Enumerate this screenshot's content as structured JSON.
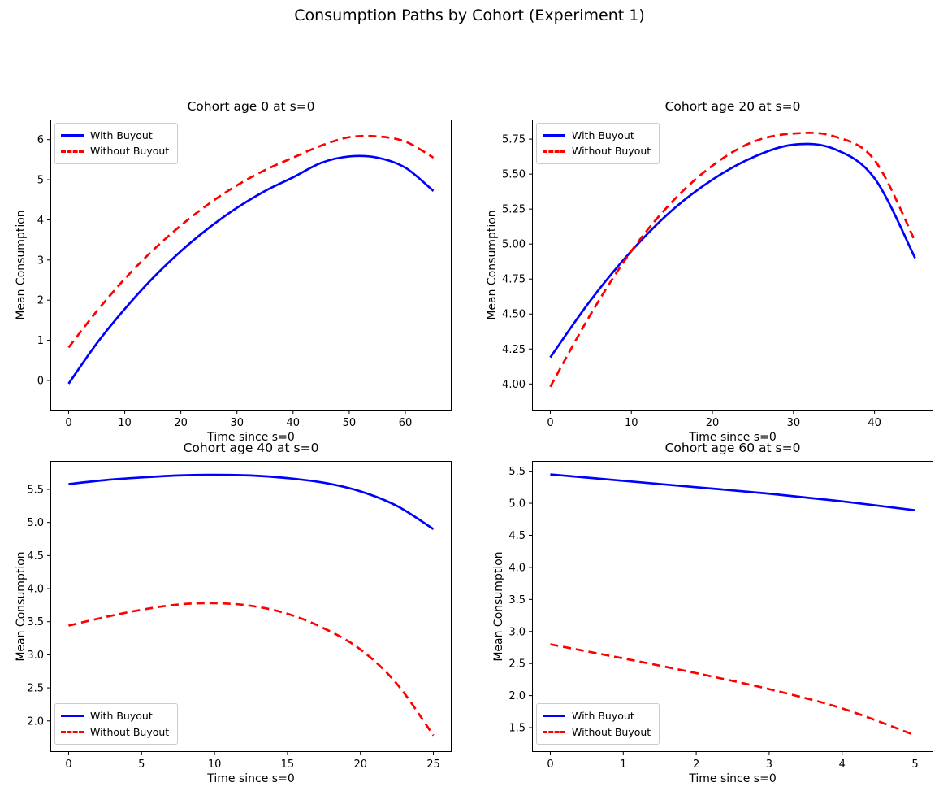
{
  "figure": {
    "title": "Consumption Paths by Cohort (Experiment 1)",
    "background_color": "#ffffff"
  },
  "legend": {
    "with_buyout": "With Buyout",
    "without_buyout": "Without Buyout",
    "with_buyout_color": "#0000ff",
    "without_buyout_color": "#ff0000"
  },
  "chart_data": [
    {
      "type": "line",
      "title": "Cohort age 0 at s=0",
      "xlabel": "Time since s=0",
      "ylabel": "Mean Consumption",
      "xlim": [
        -3.25,
        68.25
      ],
      "ylim": [
        -0.75,
        6.5
      ],
      "xticks": [
        0,
        10,
        20,
        30,
        40,
        50,
        60
      ],
      "xtick_labels": [
        "0",
        "10",
        "20",
        "30",
        "40",
        "50",
        "60"
      ],
      "yticks": [
        0,
        1,
        2,
        3,
        4,
        5,
        6
      ],
      "ytick_labels": [
        "0",
        "1",
        "2",
        "3",
        "4",
        "5",
        "6"
      ],
      "grid": false,
      "legend_position": "upper-left",
      "x": [
        0,
        5,
        10,
        15,
        20,
        25,
        30,
        35,
        40,
        45,
        50,
        55,
        60,
        65
      ],
      "series": [
        {
          "name": "With Buyout",
          "color": "#0000ff",
          "style": "solid",
          "values": [
            -0.08,
            0.92,
            1.78,
            2.55,
            3.22,
            3.8,
            4.3,
            4.72,
            5.06,
            5.42,
            5.58,
            5.55,
            5.3,
            4.72
          ]
        },
        {
          "name": "Without Buyout",
          "color": "#ff0000",
          "style": "dashed",
          "values": [
            0.82,
            1.72,
            2.53,
            3.24,
            3.86,
            4.4,
            4.86,
            5.24,
            5.55,
            5.85,
            6.06,
            6.08,
            5.95,
            5.55
          ]
        }
      ]
    },
    {
      "type": "line",
      "title": "Cohort age 20 at s=0",
      "xlabel": "Time since s=0",
      "ylabel": "Mean Consumption",
      "xlim": [
        -2.25,
        47.25
      ],
      "ylim": [
        3.81,
        5.89
      ],
      "xticks": [
        0,
        10,
        20,
        30,
        40
      ],
      "xtick_labels": [
        "0",
        "10",
        "20",
        "30",
        "40"
      ],
      "yticks": [
        4.0,
        4.25,
        4.5,
        4.75,
        5.0,
        5.25,
        5.5,
        5.75
      ],
      "ytick_labels": [
        "4.00",
        "4.25",
        "4.50",
        "4.75",
        "5.00",
        "5.25",
        "5.50",
        "5.75"
      ],
      "grid": false,
      "legend_position": "upper-left",
      "x": [
        0,
        5,
        10,
        15,
        20,
        25,
        30,
        35,
        40,
        45
      ],
      "series": [
        {
          "name": "With Buyout",
          "color": "#0000ff",
          "style": "solid",
          "values": [
            4.19,
            4.6,
            4.95,
            5.24,
            5.46,
            5.62,
            5.71,
            5.68,
            5.47,
            4.9
          ]
        },
        {
          "name": "Without Buyout",
          "color": "#ff0000",
          "style": "dashed",
          "values": [
            3.98,
            4.5,
            4.95,
            5.3,
            5.56,
            5.73,
            5.79,
            5.77,
            5.6,
            5.02
          ]
        }
      ]
    },
    {
      "type": "line",
      "title": "Cohort age 40 at s=0",
      "xlabel": "Time since s=0",
      "ylabel": "Mean Consumption",
      "xlim": [
        -1.25,
        26.25
      ],
      "ylim": [
        1.53,
        5.93
      ],
      "xticks": [
        0,
        5,
        10,
        15,
        20,
        25
      ],
      "xtick_labels": [
        "0",
        "5",
        "10",
        "15",
        "20",
        "25"
      ],
      "yticks": [
        2.0,
        2.5,
        3.0,
        3.5,
        4.0,
        4.5,
        5.0,
        5.5
      ],
      "ytick_labels": [
        "2.0",
        "2.5",
        "3.0",
        "3.5",
        "4.0",
        "4.5",
        "5.0",
        "5.5"
      ],
      "grid": false,
      "legend_position": "lower-left",
      "x": [
        0,
        2.5,
        5,
        7.5,
        10,
        12.5,
        15,
        17.5,
        20,
        22.5,
        25
      ],
      "series": [
        {
          "name": "With Buyout",
          "color": "#0000ff",
          "style": "solid",
          "values": [
            5.58,
            5.64,
            5.68,
            5.71,
            5.72,
            5.71,
            5.67,
            5.6,
            5.47,
            5.25,
            4.9
          ]
        },
        {
          "name": "Without Buyout",
          "color": "#ff0000",
          "style": "dashed",
          "values": [
            3.44,
            3.57,
            3.68,
            3.76,
            3.78,
            3.74,
            3.62,
            3.4,
            3.08,
            2.56,
            1.78
          ]
        }
      ]
    },
    {
      "type": "line",
      "title": "Cohort age 60 at s=0",
      "xlabel": "Time since s=0",
      "ylabel": "Mean Consumption",
      "xlim": [
        -0.25,
        5.25
      ],
      "ylim": [
        1.12,
        5.66
      ],
      "xticks": [
        0,
        1,
        2,
        3,
        4,
        5
      ],
      "xtick_labels": [
        "0",
        "1",
        "2",
        "3",
        "4",
        "5"
      ],
      "yticks": [
        1.5,
        2.0,
        2.5,
        3.0,
        3.5,
        4.0,
        4.5,
        5.0,
        5.5
      ],
      "ytick_labels": [
        "1.5",
        "2.0",
        "2.5",
        "3.0",
        "3.5",
        "4.0",
        "4.5",
        "5.0",
        "5.5"
      ],
      "grid": false,
      "legend_position": "lower-left",
      "x": [
        0,
        1,
        2,
        3,
        4,
        5
      ],
      "series": [
        {
          "name": "With Buyout",
          "color": "#0000ff",
          "style": "solid",
          "values": [
            5.45,
            5.35,
            5.25,
            5.15,
            5.03,
            4.89
          ]
        },
        {
          "name": "Without Buyout",
          "color": "#ff0000",
          "style": "dashed",
          "values": [
            2.8,
            2.58,
            2.35,
            2.1,
            1.8,
            1.38
          ]
        }
      ]
    }
  ]
}
